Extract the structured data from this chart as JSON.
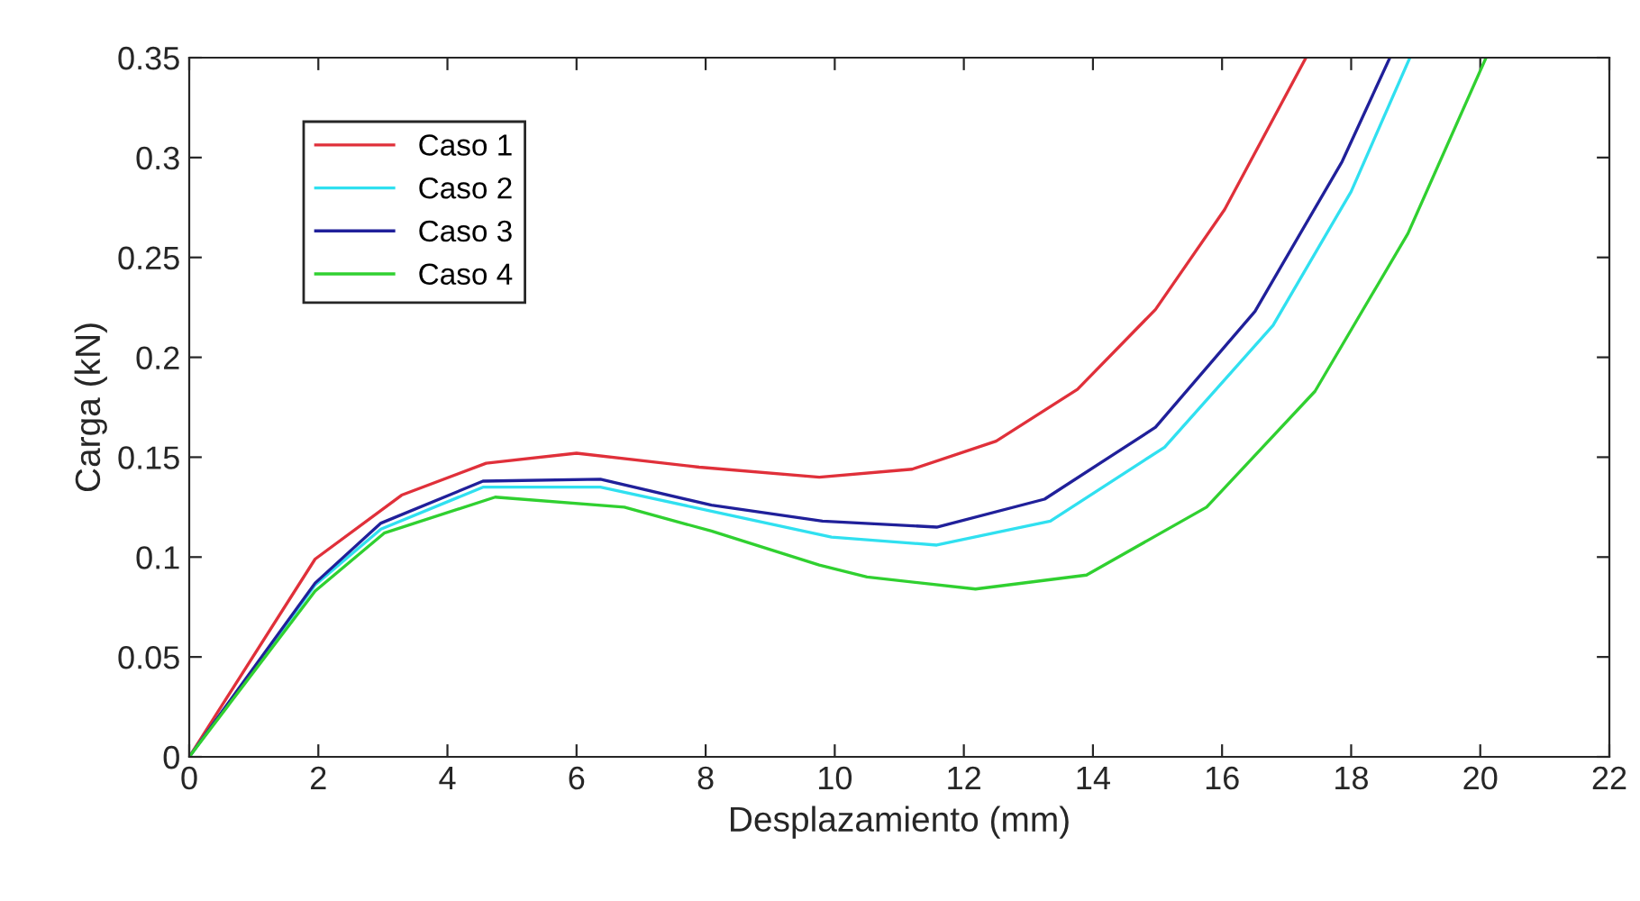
{
  "chart_data": {
    "type": "line",
    "xlabel": "Desplazamiento (mm)",
    "ylabel": "Carga (kN)",
    "xlim": [
      0,
      22
    ],
    "xticks": [
      0,
      2,
      4,
      6,
      8,
      10,
      12,
      14,
      16,
      18,
      20,
      22
    ],
    "ylim": [
      0,
      0.35
    ],
    "yticks": [
      0,
      0.05,
      0.1,
      0.15,
      0.2,
      0.25,
      0.3,
      0.35
    ],
    "grid": false,
    "legend": "top left",
    "marker": "none",
    "line_style": "solid",
    "series": [
      {
        "name": "Caso 1",
        "color": "#e0303a",
        "x": [
          0,
          1.95,
          3.29,
          4.6,
          6.0,
          7.9,
          9.76,
          11.2,
          12.5,
          13.76,
          14.97,
          16.04,
          17.3
        ],
        "values": [
          0,
          0.099,
          0.131,
          0.147,
          0.152,
          0.145,
          0.14,
          0.144,
          0.158,
          0.184,
          0.224,
          0.274,
          0.35
        ]
      },
      {
        "name": "Caso 2",
        "color": "#30e0f0",
        "x": [
          0,
          1.95,
          2.97,
          4.55,
          6.37,
          8.09,
          9.95,
          11.58,
          13.34,
          15.11,
          16.79,
          18.0,
          18.91
        ],
        "values": [
          0,
          0.086,
          0.114,
          0.135,
          0.135,
          0.123,
          0.11,
          0.106,
          0.118,
          0.155,
          0.216,
          0.283,
          0.35
        ]
      },
      {
        "name": "Caso 3",
        "color": "#20209a",
        "x": [
          0,
          1.95,
          2.97,
          4.55,
          6.37,
          8.09,
          9.81,
          11.58,
          13.25,
          14.97,
          16.51,
          17.86,
          18.6
        ],
        "values": [
          0,
          0.087,
          0.117,
          0.138,
          0.139,
          0.126,
          0.118,
          0.115,
          0.129,
          0.165,
          0.223,
          0.298,
          0.35
        ]
      },
      {
        "name": "Caso 4",
        "color": "#30d030",
        "x": [
          0,
          1.95,
          3.02,
          4.74,
          6.74,
          8.09,
          9.76,
          10.5,
          12.18,
          13.9,
          15.76,
          17.44,
          18.88,
          20.09
        ],
        "values": [
          0,
          0.083,
          0.112,
          0.13,
          0.125,
          0.113,
          0.096,
          0.09,
          0.084,
          0.091,
          0.125,
          0.183,
          0.262,
          0.35
        ]
      }
    ]
  }
}
